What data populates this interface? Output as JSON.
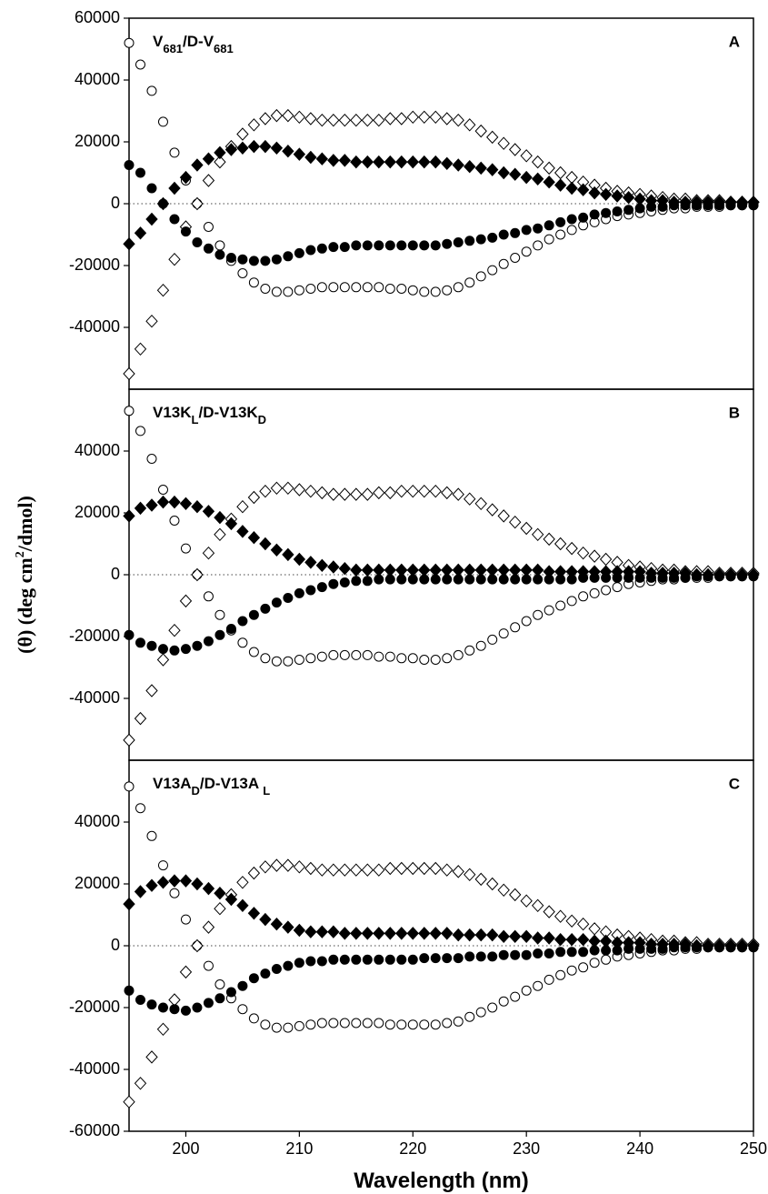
{
  "chart_data": [
    {
      "type": "scatter",
      "label": [
        {
          "text": "V"
        },
        {
          "text": "681",
          "sub": true
        },
        {
          "text": "/D-V"
        },
        {
          "text": "681",
          "sub": true
        }
      ],
      "panel_letter": "A",
      "xlim": [
        195,
        250
      ],
      "ylim": [
        -60000,
        60000
      ],
      "yticks": [
        60000,
        40000,
        20000,
        0,
        -20000,
        -40000
      ],
      "zero_line": true,
      "x": [
        195,
        196,
        197,
        198,
        199,
        200,
        201,
        202,
        203,
        204,
        205,
        206,
        207,
        208,
        209,
        210,
        211,
        212,
        213,
        214,
        215,
        216,
        217,
        218,
        219,
        220,
        221,
        222,
        223,
        224,
        225,
        226,
        227,
        228,
        229,
        230,
        231,
        232,
        233,
        234,
        235,
        236,
        237,
        238,
        239,
        240,
        241,
        242,
        243,
        244,
        245,
        246,
        247,
        248,
        249,
        250
      ],
      "series": [
        {
          "marker": "circle-open",
          "color": "#000000",
          "values": [
            52000,
            45000,
            36500,
            26500,
            16500,
            7500,
            0,
            -7500,
            -13500,
            -18500,
            -22500,
            -25500,
            -27500,
            -28500,
            -28500,
            -28000,
            -27500,
            -27000,
            -27000,
            -27000,
            -27000,
            -27000,
            -27000,
            -27500,
            -27500,
            -28000,
            -28500,
            -28500,
            -28000,
            -27000,
            -25500,
            -23500,
            -21500,
            -19500,
            -17500,
            -15500,
            -13500,
            -11500,
            -10000,
            -8500,
            -7000,
            -6000,
            -5000,
            -4000,
            -3500,
            -3000,
            -2500,
            -2000,
            -1500,
            -1500,
            -1000,
            -1000,
            -1000,
            -500,
            -500,
            -500
          ]
        },
        {
          "marker": "diamond-open",
          "color": "#000000",
          "values": [
            -55000,
            -47000,
            -38000,
            -28000,
            -18000,
            -7500,
            0,
            7500,
            13500,
            18500,
            22500,
            25500,
            27500,
            28500,
            28500,
            28000,
            27500,
            27000,
            27000,
            27000,
            27000,
            27000,
            27000,
            27500,
            27500,
            28000,
            28000,
            28000,
            27500,
            27000,
            25500,
            23500,
            21500,
            19500,
            17500,
            15500,
            13500,
            11500,
            10000,
            8500,
            7000,
            6000,
            5000,
            4000,
            3500,
            3000,
            2500,
            2000,
            1500,
            1500,
            1000,
            1000,
            1000,
            500,
            500,
            500
          ]
        },
        {
          "marker": "circle-filled",
          "color": "#000000",
          "values": [
            12500,
            10000,
            5000,
            0,
            -5000,
            -9000,
            -12500,
            -14500,
            -16500,
            -17500,
            -18000,
            -18500,
            -18500,
            -18000,
            -17000,
            -16000,
            -15000,
            -14500,
            -14000,
            -14000,
            -13500,
            -13500,
            -13500,
            -13500,
            -13500,
            -13500,
            -13500,
            -13500,
            -13000,
            -12500,
            -12000,
            -11500,
            -11000,
            -10000,
            -9500,
            -8500,
            -8000,
            -7000,
            -6000,
            -5000,
            -4500,
            -3500,
            -3000,
            -2500,
            -2000,
            -1500,
            -1000,
            -1000,
            -500,
            -500,
            -500,
            -500,
            -500,
            -500,
            -500,
            -500
          ]
        },
        {
          "marker": "diamond-filled",
          "color": "#000000",
          "values": [
            -13000,
            -9500,
            -5000,
            0,
            5000,
            8500,
            12500,
            14500,
            16500,
            17500,
            18000,
            18500,
            18500,
            18000,
            17000,
            16000,
            15000,
            14500,
            14000,
            14000,
            13500,
            13500,
            13500,
            13500,
            13500,
            13500,
            13500,
            13500,
            13000,
            12500,
            12000,
            11500,
            11000,
            10000,
            9500,
            8500,
            8000,
            7000,
            6000,
            5000,
            4500,
            3500,
            3000,
            2500,
            2000,
            1500,
            1000,
            1000,
            500,
            500,
            500,
            500,
            500,
            500,
            500,
            500
          ]
        }
      ]
    },
    {
      "type": "scatter",
      "label": [
        {
          "text": "V13K"
        },
        {
          "text": "L",
          "sub": true
        },
        {
          "text": "/D-V13K"
        },
        {
          "text": "D",
          "sub": true
        }
      ],
      "panel_letter": "B",
      "ylabel": [
        {
          "text": "(θ) (deg cm"
        },
        {
          "text": "2",
          "sup": true
        },
        {
          "text": "/dmol)"
        }
      ],
      "xlim": [
        195,
        250
      ],
      "ylim": [
        -60000,
        60000
      ],
      "yticks": [
        40000,
        20000,
        0,
        -20000,
        -40000
      ],
      "zero_line": true,
      "x": [
        195,
        196,
        197,
        198,
        199,
        200,
        201,
        202,
        203,
        204,
        205,
        206,
        207,
        208,
        209,
        210,
        211,
        212,
        213,
        214,
        215,
        216,
        217,
        218,
        219,
        220,
        221,
        222,
        223,
        224,
        225,
        226,
        227,
        228,
        229,
        230,
        231,
        232,
        233,
        234,
        235,
        236,
        237,
        238,
        239,
        240,
        241,
        242,
        243,
        244,
        245,
        246,
        247,
        248,
        249,
        250
      ],
      "series": [
        {
          "marker": "circle-open",
          "color": "#000000",
          "values": [
            53000,
            46500,
            37500,
            27500,
            17500,
            8500,
            0,
            -7000,
            -13000,
            -18000,
            -22000,
            -25000,
            -27000,
            -28000,
            -28000,
            -27500,
            -27000,
            -26500,
            -26000,
            -26000,
            -26000,
            -26000,
            -26500,
            -26500,
            -27000,
            -27000,
            -27500,
            -27500,
            -27000,
            -26000,
            -24500,
            -23000,
            -21000,
            -19000,
            -17000,
            -15000,
            -13000,
            -11500,
            -10000,
            -8500,
            -7000,
            -6000,
            -5000,
            -4000,
            -3000,
            -2500,
            -2000,
            -1500,
            -1500,
            -1000,
            -1000,
            -1000,
            -500,
            -500,
            -500,
            -500
          ]
        },
        {
          "marker": "diamond-open",
          "color": "#000000",
          "values": [
            -53500,
            -46500,
            -37500,
            -27500,
            -18000,
            -8500,
            0,
            7000,
            13000,
            18000,
            22000,
            25000,
            27000,
            28000,
            28000,
            27500,
            27000,
            26500,
            26000,
            26000,
            26000,
            26000,
            26500,
            26500,
            27000,
            27000,
            27000,
            27000,
            26500,
            26000,
            24500,
            23000,
            21000,
            19000,
            17000,
            15000,
            13000,
            11500,
            10000,
            8500,
            7000,
            6000,
            5000,
            4000,
            3000,
            2500,
            2000,
            1500,
            1500,
            1000,
            1000,
            1000,
            500,
            500,
            500,
            500
          ]
        },
        {
          "marker": "circle-filled",
          "color": "#000000",
          "values": [
            -19500,
            -22000,
            -23000,
            -24000,
            -24500,
            -24000,
            -23000,
            -21500,
            -19500,
            -17500,
            -15000,
            -13000,
            -11000,
            -9000,
            -7500,
            -6000,
            -5000,
            -4000,
            -3000,
            -2500,
            -2000,
            -2000,
            -1500,
            -1500,
            -1500,
            -1500,
            -1500,
            -1500,
            -1500,
            -1500,
            -1500,
            -1500,
            -1500,
            -1500,
            -1500,
            -1500,
            -1500,
            -1500,
            -1500,
            -1500,
            -1000,
            -1000,
            -1000,
            -1000,
            -1000,
            -1000,
            -1000,
            -1000,
            -1000,
            -1000,
            -500,
            -500,
            -500,
            -500,
            -500,
            -500
          ]
        },
        {
          "marker": "diamond-filled",
          "color": "#000000",
          "values": [
            19000,
            21500,
            22500,
            23500,
            23500,
            23000,
            22000,
            20500,
            18500,
            16500,
            14000,
            12000,
            10000,
            8000,
            6500,
            5000,
            4000,
            3000,
            2500,
            2000,
            1500,
            1500,
            1500,
            1500,
            1500,
            1500,
            1500,
            1500,
            1500,
            1500,
            1500,
            1500,
            1500,
            1500,
            1500,
            1500,
            1500,
            1000,
            1000,
            1000,
            1000,
            1000,
            1000,
            1000,
            1000,
            1000,
            500,
            500,
            500,
            500,
            0,
            0,
            0,
            0,
            0,
            0
          ]
        }
      ]
    },
    {
      "type": "scatter",
      "label": [
        {
          "text": "V13A"
        },
        {
          "text": "D",
          "sub": true
        },
        {
          "text": "/D-V13A "
        },
        {
          "text": "L",
          "sub": true
        }
      ],
      "panel_letter": "C",
      "xlabel": "Wavelength (nm)",
      "xlim": [
        195,
        250
      ],
      "xticks": [
        200,
        210,
        220,
        230,
        240,
        250
      ],
      "ylim": [
        -60000,
        60000
      ],
      "yticks": [
        40000,
        20000,
        0,
        -20000,
        -40000,
        -60000
      ],
      "zero_line": true,
      "x": [
        195,
        196,
        197,
        198,
        199,
        200,
        201,
        202,
        203,
        204,
        205,
        206,
        207,
        208,
        209,
        210,
        211,
        212,
        213,
        214,
        215,
        216,
        217,
        218,
        219,
        220,
        221,
        222,
        223,
        224,
        225,
        226,
        227,
        228,
        229,
        230,
        231,
        232,
        233,
        234,
        235,
        236,
        237,
        238,
        239,
        240,
        241,
        242,
        243,
        244,
        245,
        246,
        247,
        248,
        249,
        250
      ],
      "series": [
        {
          "marker": "circle-open",
          "color": "#000000",
          "values": [
            51500,
            44500,
            35500,
            26000,
            17000,
            8500,
            0,
            -6500,
            -12500,
            -17000,
            -20500,
            -23500,
            -25500,
            -26500,
            -26500,
            -26000,
            -25500,
            -25000,
            -25000,
            -25000,
            -25000,
            -25000,
            -25000,
            -25500,
            -25500,
            -25500,
            -25500,
            -25500,
            -25000,
            -24500,
            -23000,
            -21500,
            -20000,
            -18000,
            -16500,
            -14500,
            -13000,
            -11000,
            -9500,
            -8000,
            -7000,
            -5500,
            -4500,
            -3500,
            -3000,
            -2500,
            -2000,
            -1500,
            -1500,
            -1000,
            -1000,
            -500,
            -500,
            -500,
            -500,
            -500
          ]
        },
        {
          "marker": "diamond-open",
          "color": "#000000",
          "values": [
            -50500,
            -44500,
            -36000,
            -27000,
            -17500,
            -8500,
            0,
            6000,
            12000,
            16500,
            20500,
            23500,
            25500,
            26000,
            26000,
            25500,
            25000,
            24500,
            24500,
            24500,
            24500,
            24500,
            24500,
            25000,
            25000,
            25000,
            25000,
            25000,
            24500,
            24000,
            23000,
            21500,
            20000,
            18000,
            16500,
            14500,
            13000,
            11000,
            9500,
            8000,
            7000,
            5500,
            4500,
            3500,
            3000,
            2500,
            2000,
            1500,
            1500,
            1000,
            1000,
            500,
            500,
            500,
            500,
            500
          ]
        },
        {
          "marker": "circle-filled",
          "color": "#000000",
          "values": [
            -14500,
            -17500,
            -19000,
            -20000,
            -20500,
            -21000,
            -20000,
            -18500,
            -17000,
            -15000,
            -13000,
            -10500,
            -9000,
            -7500,
            -6500,
            -5500,
            -5000,
            -5000,
            -4500,
            -4500,
            -4500,
            -4500,
            -4500,
            -4500,
            -4500,
            -4500,
            -4000,
            -4000,
            -4000,
            -4000,
            -3500,
            -3500,
            -3500,
            -3000,
            -3000,
            -3000,
            -2500,
            -2500,
            -2000,
            -2000,
            -2000,
            -1500,
            -1500,
            -1500,
            -1000,
            -1000,
            -1000,
            -1000,
            -500,
            -500,
            -500,
            -500,
            -500,
            -500,
            -500,
            -500
          ]
        },
        {
          "marker": "diamond-filled",
          "color": "#000000",
          "values": [
            13500,
            17500,
            19500,
            20500,
            21000,
            21000,
            20000,
            18500,
            17000,
            15000,
            13000,
            10500,
            8500,
            7000,
            6000,
            5000,
            4500,
            4500,
            4500,
            4000,
            4000,
            4000,
            4000,
            4000,
            4000,
            4000,
            4000,
            4000,
            4000,
            3500,
            3500,
            3500,
            3500,
            3000,
            3000,
            3000,
            2500,
            2500,
            2000,
            2000,
            2000,
            1500,
            1500,
            1000,
            1000,
            1000,
            500,
            500,
            500,
            500,
            0,
            0,
            0,
            0,
            0,
            0
          ]
        }
      ]
    }
  ]
}
